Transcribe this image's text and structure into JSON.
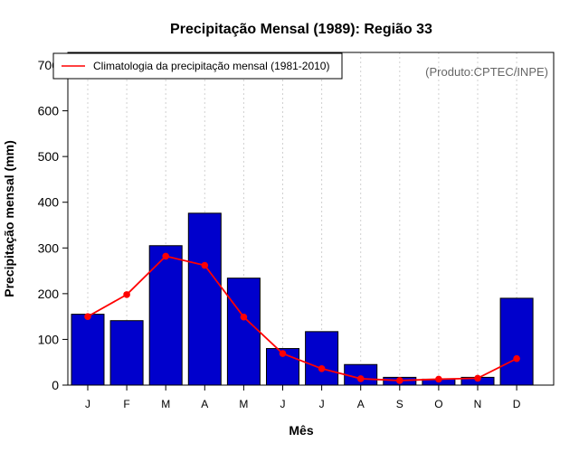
{
  "chart_data": {
    "type": "bar",
    "title": "Precipitação Mensal (1989): Região 33",
    "xlabel": "Mês",
    "ylabel": "Precipitação mensal (mm)",
    "ylim": [
      0,
      700
    ],
    "yticks": [
      0,
      100,
      200,
      300,
      400,
      500,
      600,
      700
    ],
    "grid": "vertical dotted",
    "categories": [
      "J",
      "F",
      "M",
      "A",
      "M",
      "J",
      "J",
      "A",
      "S",
      "O",
      "N",
      "D"
    ],
    "series": [
      {
        "name": "Precipitação mensal 1989",
        "kind": "bar",
        "color": "#0000cc",
        "values": [
          155,
          141,
          305,
          376,
          234,
          80,
          117,
          45,
          17,
          13,
          17,
          190
        ]
      },
      {
        "name": "Climatologia da precipitação mensal (1981-2010)",
        "kind": "line",
        "color": "#ff0000",
        "values": [
          150,
          198,
          282,
          262,
          149,
          69,
          36,
          14,
          10,
          13,
          15,
          58
        ]
      }
    ],
    "legend": {
      "label": "Climatologia da precipitação mensal (1981-2010)",
      "placement": "top-left"
    },
    "annotation": "(Produto:CPTEC/INPE)"
  },
  "colors": {
    "bar": "#0000cc",
    "line": "#ff0000",
    "grid": "#d0d0d0",
    "annotation": "#666666"
  }
}
